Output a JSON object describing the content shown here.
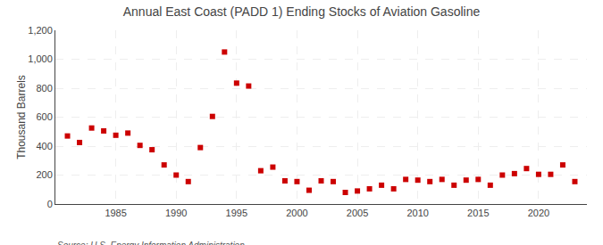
{
  "chart_data": {
    "type": "scatter",
    "title": "Annual East Coast (PADD 1) Ending Stocks of Aviation Gasoline",
    "ylabel": "Thousand Barrels",
    "source": "Source: U.S. Energy Information Administration",
    "x": [
      1981,
      1982,
      1983,
      1984,
      1985,
      1986,
      1987,
      1988,
      1989,
      1990,
      1991,
      1992,
      1993,
      1994,
      1995,
      1996,
      1997,
      1998,
      1999,
      2000,
      2001,
      2002,
      2003,
      2004,
      2005,
      2006,
      2007,
      2008,
      2009,
      2010,
      2011,
      2012,
      2013,
      2014,
      2015,
      2016,
      2017,
      2018,
      2019,
      2020,
      2021,
      2022,
      2023
    ],
    "values": [
      470,
      425,
      525,
      505,
      475,
      490,
      405,
      375,
      270,
      200,
      155,
      390,
      605,
      1050,
      835,
      815,
      230,
      255,
      160,
      155,
      95,
      160,
      155,
      80,
      90,
      105,
      130,
      105,
      170,
      165,
      155,
      170,
      130,
      165,
      170,
      130,
      200,
      210,
      245,
      205,
      205,
      270,
      155
    ],
    "color": "#cc0000",
    "marker": "square",
    "xlim": [
      1980,
      2024
    ],
    "xticks": [
      1985,
      1990,
      1995,
      2000,
      2005,
      2010,
      2015,
      2020
    ],
    "ylim": [
      0,
      1200
    ],
    "yticks": [
      0,
      200,
      400,
      600,
      800,
      {
        "value": 1000,
        "label": "1,000"
      },
      {
        "value": 1200,
        "label": "1,200"
      }
    ],
    "grid": true
  }
}
